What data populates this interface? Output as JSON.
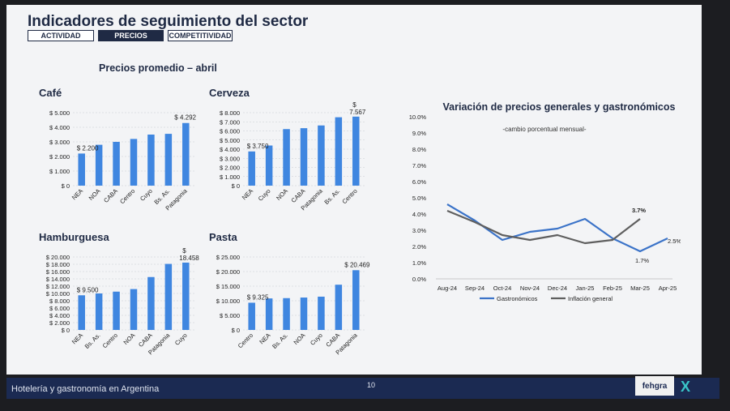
{
  "header": {
    "title": "Indicadores de seguimiento del sector",
    "tabs": [
      {
        "label": "ACTIVIDAD",
        "active": false
      },
      {
        "label": "PRECIOS",
        "active": true
      },
      {
        "label": "COMPETITIVIDAD",
        "active": false
      }
    ]
  },
  "prices_section": {
    "title": "Precios promedio – abril"
  },
  "colors": {
    "bar": "#3f86e0",
    "navy": "#1f2a44",
    "gastro_line": "#3b73c8",
    "inflation_line": "#5f5f5f",
    "footer_bg": "#1b2a52"
  },
  "chart_data": [
    {
      "type": "bar",
      "title": "Café",
      "categories": [
        "NEA",
        "NOA",
        "CABA",
        "Centro",
        "Cuyo",
        "Bs. As.",
        "Patagonia"
      ],
      "values": [
        2200,
        2800,
        3000,
        3200,
        3500,
        3550,
        4292
      ],
      "ticks": [
        "$ 0",
        "$ 1.000",
        "$ 2.000",
        "$ 3.000",
        "$ 4.000",
        "$ 5.000"
      ],
      "ylim": [
        0,
        5000
      ],
      "data_labels": {
        "first": "$ 2.200",
        "last": "$ 4.292"
      }
    },
    {
      "type": "bar",
      "title": "Cerveza",
      "categories": [
        "NEA",
        "Cuyo",
        "NOA",
        "CABA",
        "Patagonia",
        "Bs. As.",
        "Centro"
      ],
      "values": [
        3750,
        4400,
        6200,
        6300,
        6600,
        7500,
        7567
      ],
      "ticks": [
        "$ 0",
        "$ 1.000",
        "$ 2.000",
        "$ 3.000",
        "$ 4.000",
        "$ 5.000",
        "$ 6.000",
        "$ 7.000",
        "$ 8.000"
      ],
      "ylim": [
        0,
        8000
      ],
      "data_labels": {
        "first": "$ 3.750",
        "last": "$ 7.567"
      }
    },
    {
      "type": "bar",
      "title": "Hamburguesa",
      "categories": [
        "NEA",
        "Bs. As.",
        "Centro",
        "NOA",
        "CABA",
        "Patagonia",
        "Cuyo"
      ],
      "values": [
        9500,
        10000,
        10500,
        11200,
        14500,
        18100,
        18458
      ],
      "ticks": [
        "$ 0",
        "$ 2.000",
        "$ 4.000",
        "$ 6.000",
        "$ 8.000",
        "$ 10.000",
        "$ 12.000",
        "$ 14.000",
        "$ 16.000",
        "$ 18.000",
        "$ 20.000"
      ],
      "ylim": [
        0,
        20000
      ],
      "data_labels": {
        "first": "$ 9.500",
        "last": "$ 18.458"
      }
    },
    {
      "type": "bar",
      "title": "Pasta",
      "categories": [
        "Centro",
        "NEA",
        "Bs. As.",
        "NOA",
        "Cuyo",
        "CABA",
        "Patagonia"
      ],
      "values": [
        9325,
        10800,
        10900,
        11100,
        11400,
        15500,
        20469
      ],
      "ticks": [
        "$ 0",
        "$ 5.000",
        "$ 10.000",
        "$ 15.000",
        "$ 20.000",
        "$ 25.000"
      ],
      "ylim": [
        0,
        25000
      ],
      "data_labels": {
        "first": "$ 9.325",
        "last": "$ 20.469"
      }
    },
    {
      "type": "line",
      "title": "Variación de precios generales y gastronómicos",
      "subtitle": "-cambio porcentual mensual-",
      "x": [
        "Aug-24",
        "Sep-24",
        "Oct-24",
        "Nov-24",
        "Dec-24",
        "Jan-25",
        "Feb-25",
        "Mar-25",
        "Apr-25"
      ],
      "yticks": [
        "0.0%",
        "1.0%",
        "2.0%",
        "3.0%",
        "4.0%",
        "5.0%",
        "6.0%",
        "7.0%",
        "8.0%",
        "9.0%",
        "10.0%"
      ],
      "ylim": [
        0,
        10
      ],
      "series": [
        {
          "name": "Gastronómicos",
          "values": [
            4.6,
            3.6,
            2.4,
            2.9,
            3.1,
            3.7,
            2.5,
            1.7,
            2.5
          ]
        },
        {
          "name": "Inflación general",
          "values": [
            4.2,
            3.5,
            2.7,
            2.4,
            2.7,
            2.2,
            2.4,
            3.7,
            null
          ]
        }
      ],
      "annotations": [
        {
          "text": "3.7%",
          "series": 1,
          "index": 7
        },
        {
          "text": "1.7%",
          "series": 0,
          "index": 7
        },
        {
          "text": "2.5%",
          "series": 0,
          "index": 8
        }
      ]
    }
  ],
  "footer": {
    "text": "Hotelería y gastronomía en Argentina",
    "page": "10",
    "logo": "fehgra",
    "mark": "X"
  }
}
